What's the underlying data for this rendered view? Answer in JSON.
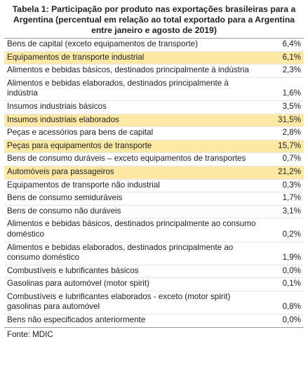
{
  "title": "Tabela 1: Participação por produto nas exportações brasileiras para a Argentina (percentual em relação ao total exportado para a Argentina entre janeiro e agosto de 2019)",
  "colors": {
    "highlight": "#fde9a6"
  },
  "rows": [
    {
      "label": "Bens de capital (exceto equipamentos de transporte)",
      "value": "6,4%",
      "highlight": false
    },
    {
      "label": "Equipamentos de transporte industrial",
      "value": "6,1%",
      "highlight": true
    },
    {
      "label": "Alimentos e bebidas básicos, destinados principalmente à indústria",
      "value": "2,3%",
      "highlight": false
    },
    {
      "label": "Alimentos e bebidas elaborados, destinados principalmente à indústria",
      "value": "1,6%",
      "highlight": false
    },
    {
      "label": "Insumos industriais básicos",
      "value": "3,5%",
      "highlight": false
    },
    {
      "label": "Insumos industriais elaborados",
      "value": "31,5%",
      "highlight": true
    },
    {
      "label": "Peças e acessórios para bens de capital",
      "value": "2,8%",
      "highlight": false
    },
    {
      "label": "Peças para equipamentos de transporte",
      "value": "15,7%",
      "highlight": true
    },
    {
      "label": "Bens de consumo duráveis – exceto equipamentos de transportes",
      "value": "0,7%",
      "highlight": false
    },
    {
      "label": "Automóveis para passageiros",
      "value": "21,2%",
      "highlight": true
    },
    {
      "label": "Equipamentos de transporte não industrial",
      "value": "0,3%",
      "highlight": false
    },
    {
      "label": "Bens de consumo semiduráveis",
      "value": "1,7%",
      "highlight": false
    },
    {
      "label": "Bens de consumo não duráveis",
      "value": "3,1%",
      "highlight": false
    },
    {
      "label": "Alimentos e bebidas básicos, destinados principalmente ao consumo doméstico",
      "value": "0,2%",
      "highlight": false
    },
    {
      "label": "Alimentos e bebidas elaborados, destinados principalmente ao consumo doméstico",
      "value": "1,9%",
      "highlight": false
    },
    {
      "label": "Combustíveis e lubrificantes básicos",
      "value": "0,0%",
      "highlight": false
    },
    {
      "label": "Gasolinas para automóvel (motor spirit)",
      "value": "0,1%",
      "highlight": false
    },
    {
      "label": "Combustíveis e lubrificantes elaborados - exceto (motor spirit) gasolinas para automóvel",
      "value": "0,8%",
      "highlight": false
    },
    {
      "label": "Bens não especificados anteriormente",
      "value": "0,0%",
      "highlight": false
    }
  ],
  "source": "Fonte: MDIC"
}
